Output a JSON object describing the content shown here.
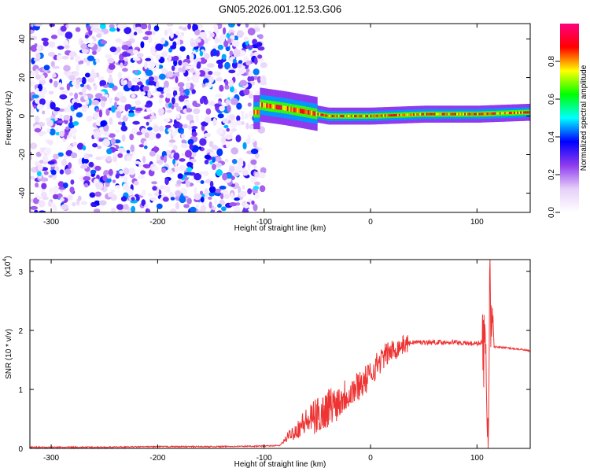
{
  "title": "GN05.2026.001.12.53.G06",
  "chart_data": [
    {
      "type": "heatmap",
      "xlabel": "Height of straight line (km)",
      "ylabel": "Frequency (Hz)",
      "xlim": [
        -320,
        150
      ],
      "ylim": [
        -50,
        48
      ],
      "xticks": [
        -300,
        -200,
        -100,
        0,
        100
      ],
      "yticks": [
        -40,
        -20,
        0,
        20,
        40
      ],
      "colorbar": {
        "label": "Normalized spectral amplitude",
        "range": [
          0.0,
          1.0
        ],
        "ticks": [
          0.0,
          0.2,
          0.4,
          0.6,
          0.8
        ],
        "tick_labels": [
          "0.0",
          "0.2",
          "0.4",
          "0.6",
          "0.8"
        ],
        "colormap": [
          "#ffffff",
          "#e6cff9",
          "#8f3bef",
          "#0000ff",
          "#00ffff",
          "#00ff00",
          "#ffff00",
          "#ff0000",
          "#ff0080"
        ]
      },
      "regions": [
        {
          "description": "diffuse noise",
          "x_range": [
            -320,
            -100
          ],
          "y_range": [
            -50,
            48
          ],
          "amplitude": 0.15
        },
        {
          "description": "signal track",
          "x_range": [
            -110,
            150
          ],
          "center_freq": [
            [
              -105,
              6
            ],
            [
              -80,
              4
            ],
            [
              -60,
              2
            ],
            [
              -40,
              0
            ],
            [
              0,
              0
            ],
            [
              50,
              1
            ],
            [
              100,
              1
            ],
            [
              150,
              2
            ]
          ],
          "amplitude": 0.9
        }
      ],
      "grid": false
    },
    {
      "type": "line",
      "xlabel": "Height of straight line (km)",
      "ylabel": "SNR (10 * v/v)",
      "y_scale_label": "(x10",
      "y_scale_exponent": "4",
      "y_scale_close": ")",
      "xlim": [
        -320,
        150
      ],
      "ylim": [
        0,
        3.2
      ],
      "xticks": [
        -300,
        -200,
        -100,
        0,
        100
      ],
      "yticks": [
        0,
        1,
        2,
        3
      ],
      "color": "#ee3333",
      "series": [
        {
          "x": [
            -320,
            -300,
            -250,
            -200,
            -150,
            -100,
            -85,
            -80,
            -75,
            -70,
            -65,
            -60,
            -55,
            -50,
            -45,
            -40,
            -35,
            -30,
            -25,
            -20,
            -15,
            -10,
            -5,
            0,
            5,
            10,
            15,
            20,
            25,
            30,
            35,
            40,
            50,
            60,
            70,
            80,
            90,
            100,
            105,
            108,
            110,
            111,
            112,
            113,
            115,
            120,
            130,
            140,
            150
          ],
          "y": [
            0.02,
            0.02,
            0.02,
            0.03,
            0.03,
            0.04,
            0.05,
            0.15,
            0.25,
            0.3,
            0.4,
            0.45,
            0.5,
            0.55,
            0.6,
            0.7,
            0.75,
            0.8,
            0.9,
            0.95,
            1.0,
            1.1,
            1.15,
            1.25,
            1.4,
            1.5,
            1.6,
            1.65,
            1.7,
            1.75,
            1.78,
            1.8,
            1.8,
            1.8,
            1.8,
            1.8,
            1.78,
            1.78,
            1.8,
            1.5,
            0.5,
            0.2,
            3.2,
            1.8,
            1.72,
            1.72,
            1.7,
            1.68,
            1.65
          ]
        }
      ],
      "grid": false
    }
  ]
}
